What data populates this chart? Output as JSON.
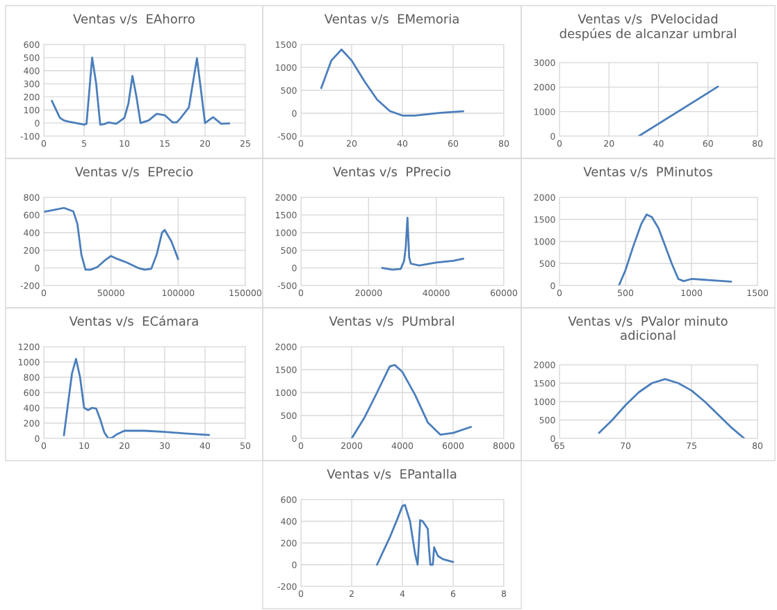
{
  "chart_data": [
    {
      "type": "line",
      "title": "Ventas v/s  EAhorro",
      "x": [
        1,
        2,
        2.5,
        3,
        4,
        5,
        5.3,
        6,
        6.5,
        7,
        7.5,
        8,
        9,
        10,
        10.5,
        11,
        11.5,
        12,
        13,
        14,
        15,
        16,
        16.5,
        17,
        18,
        19,
        19.5,
        20,
        21,
        22,
        23
      ],
      "series": [
        {
          "color": "#4a7ebb",
          "values": [
            170,
            40,
            20,
            12,
            0,
            -12,
            -5,
            500,
            300,
            -12,
            -8,
            5,
            -5,
            40,
            150,
            360,
            200,
            0,
            20,
            70,
            60,
            5,
            5,
            40,
            120,
            495,
            250,
            0,
            45,
            -5,
            -3
          ]
        }
      ],
      "xlim": [
        0,
        25
      ],
      "xticks": [
        0,
        5,
        10,
        15,
        20,
        25
      ],
      "ylim": [
        -100,
        600
      ],
      "yticks": [
        -100,
        0,
        100,
        200,
        300,
        400,
        500,
        600
      ],
      "grid": true
    },
    {
      "type": "line",
      "title": "Ventas v/s  EMemoria",
      "x": [
        8,
        12,
        16,
        20,
        25,
        30,
        35,
        40,
        45,
        50,
        55,
        60,
        64
      ],
      "series": [
        {
          "color": "#4a7ebb",
          "values": [
            550,
            1150,
            1390,
            1150,
            700,
            300,
            50,
            -50,
            -50,
            -20,
            10,
            30,
            45
          ]
        }
      ],
      "xlim": [
        0,
        80
      ],
      "xticks": [
        0,
        20,
        40,
        60,
        80
      ],
      "ylim": [
        -500,
        1500
      ],
      "yticks": [
        -500,
        0,
        500,
        1000,
        1500
      ],
      "grid": true
    },
    {
      "type": "line",
      "title": "Ventas v/s  PVelocidad\ndespúes de alcanzar umbral",
      "x": [
        32,
        64
      ],
      "series": [
        {
          "color": "#4a7ebb",
          "values": [
            0,
            2020
          ]
        }
      ],
      "xlim": [
        0,
        80
      ],
      "xticks": [
        0,
        20,
        40,
        60,
        80
      ],
      "ylim": [
        0,
        3000
      ],
      "yticks": [
        0,
        1000,
        2000,
        3000
      ],
      "grid": true
    },
    {
      "type": "line",
      "title": "Ventas v/s  EPrecio",
      "x": [
        0,
        5000,
        15000,
        22000,
        25000,
        28000,
        31000,
        35000,
        40000,
        45000,
        50000,
        55000,
        62000,
        70000,
        75000,
        80000,
        84000,
        88000,
        90000,
        95000,
        100000
      ],
      "series": [
        {
          "color": "#4a7ebb",
          "values": [
            635,
            650,
            680,
            640,
            500,
            150,
            -20,
            -20,
            10,
            80,
            135,
            100,
            60,
            0,
            -20,
            -10,
            150,
            400,
            430,
            300,
            100
          ]
        }
      ],
      "xlim": [
        0,
        150000
      ],
      "xticks": [
        0,
        50000,
        100000,
        150000
      ],
      "ylim": [
        -200,
        800
      ],
      "yticks": [
        -200,
        0,
        200,
        400,
        600,
        800
      ],
      "grid": true
    },
    {
      "type": "line",
      "title": "Ventas v/s  PPrecio",
      "x": [
        24000,
        27000,
        29500,
        30500,
        31000,
        31500,
        32000,
        32500,
        35000,
        40000,
        45000,
        48000
      ],
      "series": [
        {
          "color": "#4a7ebb",
          "values": [
            0,
            -50,
            -30,
            200,
            600,
            1420,
            300,
            120,
            70,
            150,
            200,
            260
          ]
        }
      ],
      "xlim": [
        0,
        60000
      ],
      "xticks": [
        0,
        20000,
        40000,
        60000
      ],
      "ylim": [
        -500,
        2000
      ],
      "yticks": [
        -500,
        0,
        500,
        1000,
        1500,
        2000
      ],
      "grid": true
    },
    {
      "type": "line",
      "title": "Ventas v/s  PMinutos",
      "x": [
        450,
        500,
        560,
        620,
        660,
        700,
        750,
        800,
        850,
        900,
        940,
        1000,
        1300
      ],
      "series": [
        {
          "color": "#4a7ebb",
          "values": [
            0,
            350,
            900,
            1400,
            1610,
            1550,
            1300,
            900,
            500,
            150,
            100,
            150,
            90
          ]
        }
      ],
      "xlim": [
        0,
        1500
      ],
      "xticks": [
        0,
        500,
        1000,
        1500
      ],
      "ylim": [
        0,
        2000
      ],
      "yticks": [
        0,
        500,
        1000,
        1500,
        2000
      ],
      "grid": true
    },
    {
      "type": "line",
      "title": "Ventas v/s  ECámara",
      "x": [
        5,
        6,
        7,
        8,
        9,
        10,
        11,
        12,
        13,
        14,
        15,
        16,
        17,
        18,
        20,
        25,
        30,
        35,
        41
      ],
      "series": [
        {
          "color": "#4a7ebb",
          "values": [
            40,
            450,
            850,
            1040,
            800,
            400,
            370,
            400,
            390,
            250,
            80,
            0,
            10,
            50,
            100,
            100,
            85,
            65,
            45
          ]
        }
      ],
      "xlim": [
        0,
        50
      ],
      "xticks": [
        0,
        10,
        20,
        30,
        40,
        50
      ],
      "ylim": [
        0,
        1200
      ],
      "yticks": [
        0,
        200,
        400,
        600,
        800,
        1000,
        1200
      ],
      "grid": true
    },
    {
      "type": "line",
      "title": "Ventas v/s  PUmbral",
      "x": [
        2000,
        2500,
        3000,
        3500,
        3700,
        4000,
        4500,
        5000,
        5500,
        6000,
        6700
      ],
      "series": [
        {
          "color": "#4a7ebb",
          "values": [
            0,
            450,
            1000,
            1570,
            1600,
            1450,
            950,
            350,
            80,
            120,
            250
          ]
        }
      ],
      "xlim": [
        0,
        8000
      ],
      "xticks": [
        0,
        2000,
        4000,
        6000,
        8000
      ],
      "ylim": [
        0,
        2000
      ],
      "yticks": [
        0,
        500,
        1000,
        1500,
        2000
      ],
      "grid": true
    },
    {
      "type": "line",
      "title": "Ventas v/s  PValor minuto\nadicional",
      "x": [
        68,
        69,
        70,
        71,
        72,
        73,
        74,
        75,
        76,
        77,
        78,
        79
      ],
      "series": [
        {
          "color": "#4a7ebb",
          "values": [
            150,
            500,
            900,
            1250,
            1500,
            1610,
            1500,
            1300,
            1000,
            650,
            300,
            0
          ]
        }
      ],
      "xlim": [
        65,
        80
      ],
      "xticks": [
        65,
        70,
        75,
        80
      ],
      "ylim": [
        0,
        2000
      ],
      "yticks": [
        0,
        500,
        1000,
        1500,
        2000
      ],
      "grid": true
    },
    {
      "type": "line",
      "title": "Ventas v/s  EPantalla",
      "x": [
        3,
        3.5,
        3.8,
        4,
        4.1,
        4.3,
        4.5,
        4.6,
        4.65,
        4.7,
        4.8,
        5,
        5.05,
        5.1,
        5.2,
        5.25,
        5.4,
        5.6,
        6
      ],
      "series": [
        {
          "color": "#4a7ebb",
          "values": [
            0,
            250,
            420,
            540,
            550,
            400,
            100,
            0,
            200,
            410,
            400,
            330,
            150,
            0,
            0,
            160,
            80,
            50,
            25
          ]
        }
      ],
      "xlim": [
        0,
        8
      ],
      "xticks": [
        0,
        2,
        4,
        6,
        8
      ],
      "ylim": [
        -200,
        600
      ],
      "yticks": [
        -200,
        0,
        200,
        400,
        600
      ],
      "grid": true
    }
  ]
}
